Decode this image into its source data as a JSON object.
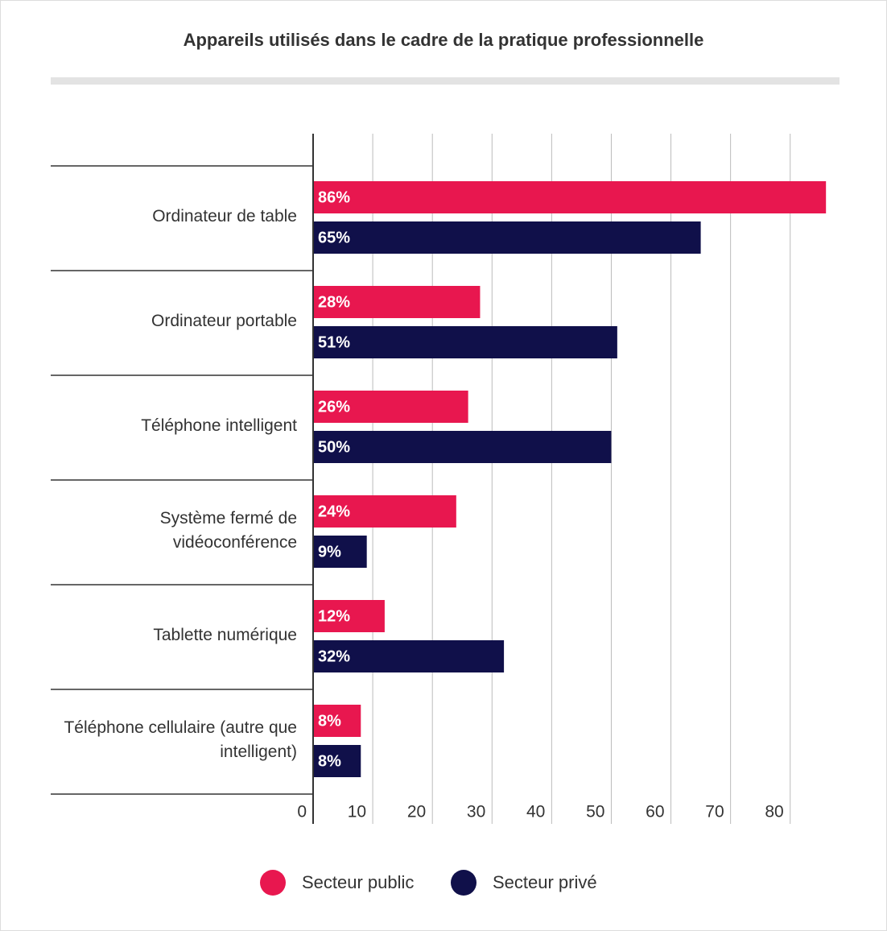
{
  "chart_data": {
    "type": "hbar",
    "title": "Appareils utilisés dans le cadre de la pratique professionnelle",
    "categories": [
      "Ordinateur de table",
      "Ordinateur portable",
      "Téléphone intelligent",
      "Système fermé de vidéoconférence",
      "Tablette numérique",
      "Téléphone cellulaire (autre que intelligent)"
    ],
    "series": [
      {
        "name": "Secteur public",
        "color": "#e8174f",
        "values": [
          86,
          28,
          26,
          24,
          12,
          8
        ],
        "value_labels": [
          "86%",
          "28%",
          "26%",
          "24%",
          "12%",
          "8%"
        ]
      },
      {
        "name": "Secteur privé",
        "color": "#10104a",
        "values": [
          65,
          51,
          50,
          9,
          32,
          8
        ],
        "value_labels": [
          "65%",
          "51%",
          "50%",
          "9%",
          "32%",
          "8%"
        ]
      }
    ],
    "xlim": [
      0,
      88
    ],
    "xticks": [
      0,
      10,
      20,
      30,
      40,
      50,
      60,
      70,
      80
    ],
    "grid": true
  }
}
